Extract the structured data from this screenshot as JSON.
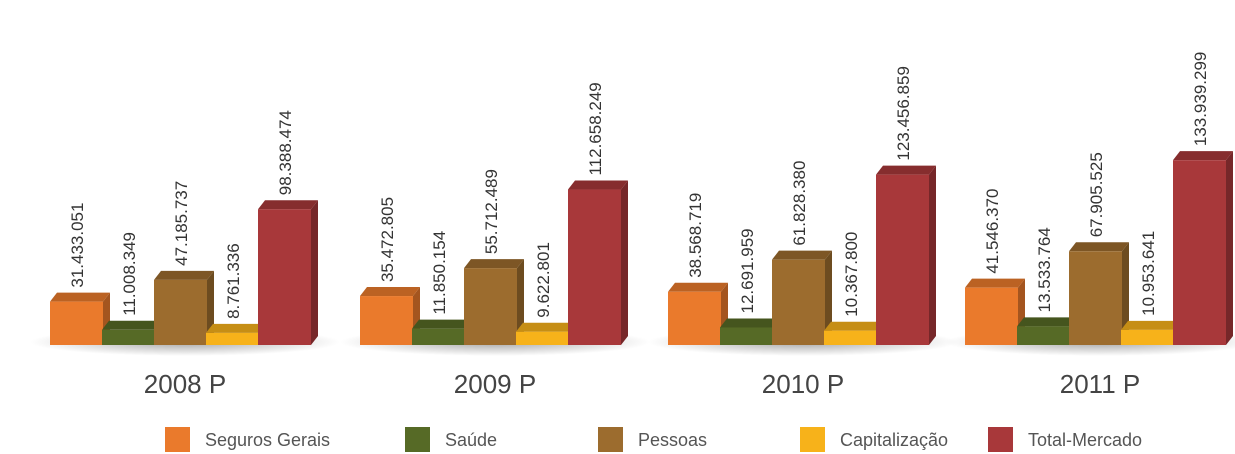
{
  "chart_data": {
    "type": "bar3d",
    "categories": [
      "2008 P",
      "2009 P",
      "2010 P",
      "2011 P"
    ],
    "series": [
      {
        "name": "Seguros Gerais",
        "color": "#ea7a2c",
        "values": [
          31433051,
          35472805,
          38568719,
          41546370
        ],
        "value_labels": [
          "31.433.051",
          "35.472.805",
          "38.568.719",
          "41.546.370"
        ]
      },
      {
        "name": "Saúde",
        "color": "#566a26",
        "values": [
          11008349,
          11850154,
          12691959,
          13533764
        ],
        "value_labels": [
          "11.008.349",
          "11.850.154",
          "12.691.959",
          "13.533.764"
        ]
      },
      {
        "name": "Pessoas",
        "color": "#9c6c2e",
        "values": [
          47185737,
          55712489,
          61828380,
          67905525
        ],
        "value_labels": [
          "47.185.737",
          "55.712.489",
          "61.828.380",
          "67.905.525"
        ]
      },
      {
        "name": "Capitalização",
        "color": "#f7b21a",
        "values": [
          8761336,
          9622801,
          10367800,
          10953641
        ],
        "value_labels": [
          "8.761.336",
          "9.622.801",
          "10.367.800",
          "10.953.641"
        ]
      },
      {
        "name": "Total-Mercado",
        "color": "#a8383a",
        "values": [
          98388474,
          112658249,
          123456859,
          133939299
        ],
        "value_labels": [
          "98.388.474",
          "112.658.249",
          "123.456.859",
          "133.939.299"
        ]
      }
    ]
  }
}
